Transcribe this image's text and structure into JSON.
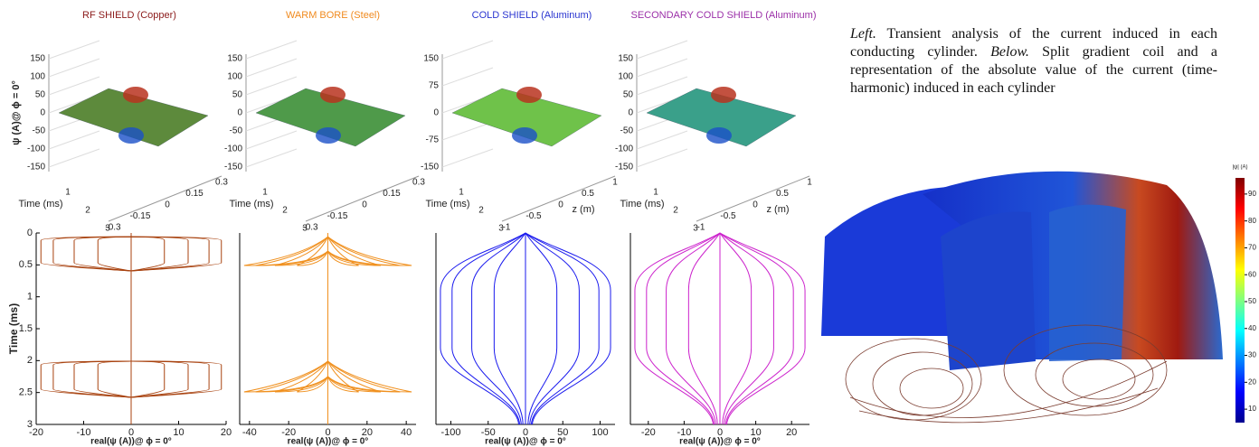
{
  "panels": [
    {
      "title": "RF SHIELD (Copper)",
      "title_color": "#8b1a1a",
      "line_color": "#a8420f",
      "surface_color": "#5d8a3c",
      "surface": {
        "zlabel": "ψ (A)@ ϕ = 0°",
        "zticks": [
          150,
          100,
          50,
          0,
          -50,
          -100,
          -150
        ],
        "zlim": [
          -150,
          150
        ],
        "tlabel": "Time (ms)",
        "tticks": [
          1,
          2,
          3
        ],
        "sticks": [
          -0.3,
          -0.15,
          0,
          0.15,
          0.3
        ],
        "slim": [
          -0.3,
          0.3
        ]
      },
      "plot": {
        "xlabel": "real(ψ (A))@ ϕ = 0°",
        "xticks": [
          -20,
          -10,
          0,
          10,
          20
        ],
        "xlim": [
          -20,
          20
        ],
        "ylabel": "Time (ms)",
        "yticks": [
          0,
          0.5,
          1,
          1.5,
          2,
          2.5,
          3
        ],
        "ylim": [
          0,
          3
        ]
      }
    },
    {
      "title": "WARM BORE (Steel)",
      "title_color": "#f08a1e",
      "line_color": "#f0901e",
      "surface_color": "#4f9a4a",
      "surface": {
        "zticks": [
          150,
          100,
          50,
          0,
          -50,
          -100,
          -150
        ],
        "zlim": [
          -150,
          150
        ],
        "tlabel": "Time (ms)",
        "tticks": [
          1,
          2,
          3
        ],
        "sticks": [
          -0.3,
          -0.15,
          0,
          0.15,
          0.3
        ],
        "slim": [
          -0.3,
          0.3
        ]
      },
      "plot": {
        "xlabel": "real(ψ (A))@ ϕ = 0°",
        "xticks": [
          -40,
          -20,
          0,
          20,
          40
        ],
        "xlim": [
          -45,
          45
        ],
        "ylim": [
          0,
          3
        ]
      }
    },
    {
      "title": "COLD SHIELD (Aluminum)",
      "title_color": "#2a35d0",
      "line_color": "#1a1aee",
      "surface_color": "#6fc24a",
      "surface": {
        "zticks": [
          150,
          75,
          0,
          -75,
          -150
        ],
        "zlim": [
          -150,
          150
        ],
        "tlabel": "Time (ms)",
        "tticks": [
          1,
          2,
          3
        ],
        "slabel": "z (m)",
        "sticks": [
          -1,
          -0.5,
          0,
          0.5,
          1
        ],
        "slim": [
          -1,
          1
        ]
      },
      "plot": {
        "xlabel": "real(ψ (A))@ ϕ = 0°",
        "xticks": [
          -100,
          -50,
          0,
          50,
          100
        ],
        "xlim": [
          -120,
          120
        ],
        "ylim": [
          0,
          3
        ]
      }
    },
    {
      "title": "SECONDARY COLD SHIELD (Aluminum)",
      "title_color": "#9b2fa8",
      "line_color": "#cc22cc",
      "surface_color": "#3aa08a",
      "surface": {
        "zticks": [
          150,
          100,
          50,
          0,
          -50,
          -100,
          -150
        ],
        "zlim": [
          -150,
          150
        ],
        "tlabel": "Time (ms)",
        "tticks": [
          1,
          2,
          3
        ],
        "slabel": "z (m)",
        "sticks": [
          -1,
          -0.5,
          0,
          0.5,
          1
        ],
        "slim": [
          -1,
          1
        ]
      },
      "plot": {
        "xlabel": "real(ψ (A))@ ϕ = 0°",
        "xticks": [
          -20,
          -10,
          0,
          10,
          20
        ],
        "xlim": [
          -25,
          25
        ],
        "ylim": [
          0,
          3
        ]
      }
    }
  ],
  "caption": {
    "left": "Left.",
    "text1": " Transient analysis of the current induced in each conducting cylinder. ",
    "below": "Below.",
    "text2": " Split gradient coil and a representation of the absolute value of the current (time-harmonic) induced in each cylinder"
  },
  "colorbar": {
    "label": "|ψ| (A)",
    "ticks": [
      10,
      20,
      30,
      40,
      50,
      60,
      70,
      80,
      90
    ],
    "clim": [
      5,
      96
    ]
  }
}
